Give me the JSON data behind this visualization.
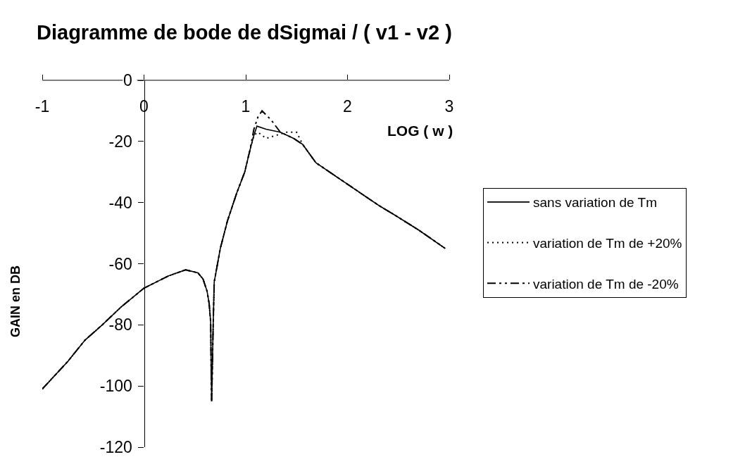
{
  "chart_data": {
    "type": "line",
    "title": "Diagramme de bode de dSigmai / ( v1 - v2 )",
    "xlabel": "LOG ( w )",
    "ylabel": "GAIN en DB",
    "xlim": [
      -1,
      3
    ],
    "xticks": [
      -1,
      0,
      1,
      2,
      3
    ],
    "ylim": [
      -120,
      0
    ],
    "yticks": [
      -120,
      -100,
      -80,
      -60,
      -40,
      -20,
      0
    ],
    "grid": false,
    "legend": "right",
    "series": [
      {
        "name": "sans variation de Tm",
        "color": "#000000",
        "line_style": "solid",
        "x": [
          -1.0,
          -0.75,
          -0.58,
          -0.41,
          -0.22,
          0.0,
          0.24,
          0.41,
          0.53,
          0.58,
          0.62,
          0.64,
          0.655,
          0.66,
          0.665,
          0.68,
          0.69,
          0.75,
          0.82,
          0.91,
          0.99,
          1.04,
          1.08,
          1.11,
          1.2,
          1.34,
          1.47,
          1.56,
          1.69,
          2.0,
          2.31,
          2.46,
          2.7,
          2.96
        ],
        "values": [
          -101,
          -92,
          -85,
          -80,
          -74,
          -68,
          -64,
          -62,
          -63,
          -65,
          -69,
          -73,
          -79,
          -94,
          -105,
          -80,
          -66,
          -55,
          -46,
          -37,
          -30,
          -23,
          -18,
          -15,
          -16,
          -17,
          -19,
          -21,
          -27,
          -34,
          -41,
          -44,
          -49,
          -55
        ]
      },
      {
        "name": "variation de Tm de +20%",
        "color": "#000000",
        "line_style": "dotted",
        "x": [
          -1.0,
          -0.75,
          -0.58,
          -0.41,
          -0.22,
          0.0,
          0.24,
          0.41,
          0.53,
          0.58,
          0.62,
          0.64,
          0.655,
          0.66,
          0.665,
          0.68,
          0.69,
          0.75,
          0.82,
          0.91,
          0.99,
          1.04,
          1.08,
          1.12,
          1.2,
          1.3,
          1.4,
          1.5,
          1.56,
          1.69,
          2.0,
          2.31,
          2.46,
          2.7,
          2.96
        ],
        "values": [
          -101,
          -92,
          -85,
          -80,
          -74,
          -68,
          -64,
          -62,
          -63,
          -65,
          -69,
          -73,
          -79,
          -94,
          -105,
          -80,
          -66,
          -55,
          -46,
          -37,
          -30,
          -23,
          -18,
          -17,
          -19,
          -18,
          -17,
          -17,
          -21,
          -27,
          -34,
          -41,
          -44,
          -49,
          -55
        ]
      },
      {
        "name": "variation de Tm de -20%",
        "color": "#000000",
        "line_style": "dashed",
        "x": [
          -1.0,
          -0.75,
          -0.58,
          -0.41,
          -0.22,
          0.0,
          0.24,
          0.41,
          0.53,
          0.58,
          0.62,
          0.64,
          0.655,
          0.66,
          0.665,
          0.68,
          0.69,
          0.75,
          0.82,
          0.91,
          0.99,
          1.04,
          1.08,
          1.12,
          1.16,
          1.25,
          1.34,
          1.47,
          1.56,
          1.69,
          2.0,
          2.31,
          2.46,
          2.7,
          2.96
        ],
        "values": [
          -101,
          -92,
          -85,
          -80,
          -74,
          -68,
          -64,
          -62,
          -63,
          -65,
          -69,
          -73,
          -79,
          -94,
          -105,
          -80,
          -66,
          -55,
          -46,
          -37,
          -30,
          -23,
          -16,
          -12,
          -10,
          -13,
          -17,
          -19,
          -21,
          -27,
          -34,
          -41,
          -44,
          -49,
          -55
        ]
      }
    ]
  }
}
